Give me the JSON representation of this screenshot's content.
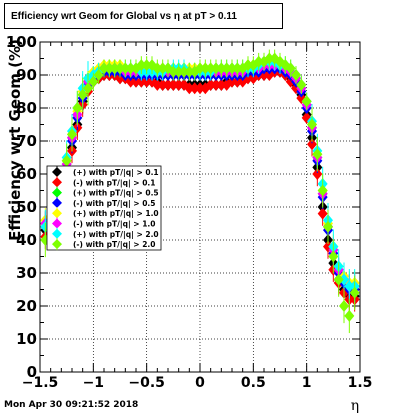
{
  "title": "Efficiency wrt Geom for Global vs   η at pT > 0.11",
  "timestamp": "Mon Apr 30 09:21:52 2018",
  "chart_data": {
    "type": "scatter",
    "title": "Efficiency wrt Geom for Global vs   η at pT > 0.11",
    "xlabel": "η",
    "ylabel": "Efficiency wrt Geom (%)",
    "xlim": [
      -1.5,
      1.5
    ],
    "ylim": [
      0,
      100
    ],
    "xticks": [
      -1.5,
      -1,
      -0.5,
      0,
      0.5,
      1,
      1.5
    ],
    "xtick_labels": [
      "−1.5",
      "−1",
      "−0.5",
      "0",
      "0.5",
      "1",
      "1.5"
    ],
    "yticks": [
      0,
      10,
      20,
      30,
      40,
      50,
      60,
      70,
      80,
      90,
      100
    ],
    "grid": true,
    "legend_position": "left",
    "x": [
      -1.45,
      -1.4,
      -1.35,
      -1.3,
      -1.25,
      -1.2,
      -1.15,
      -1.1,
      -1.05,
      -1.0,
      -0.95,
      -0.9,
      -0.85,
      -0.8,
      -0.75,
      -0.7,
      -0.65,
      -0.6,
      -0.55,
      -0.5,
      -0.45,
      -0.4,
      -0.35,
      -0.3,
      -0.25,
      -0.2,
      -0.15,
      -0.1,
      -0.05,
      0.0,
      0.05,
      0.1,
      0.15,
      0.2,
      0.25,
      0.3,
      0.35,
      0.4,
      0.45,
      0.5,
      0.55,
      0.6,
      0.65,
      0.7,
      0.75,
      0.8,
      0.85,
      0.9,
      0.95,
      1.0,
      1.05,
      1.1,
      1.15,
      1.2,
      1.25,
      1.3,
      1.35,
      1.4,
      1.45
    ],
    "series": [
      {
        "name": "(+) with pT/|q| > 0.1",
        "color": "#000000",
        "values": [
          43,
          44,
          46,
          52,
          60,
          68,
          75,
          82,
          86,
          88,
          89,
          90,
          90,
          90,
          89,
          89,
          89,
          88,
          88,
          88,
          88,
          88,
          87,
          87,
          87,
          87,
          87,
          87,
          87,
          87,
          87,
          87,
          87,
          87,
          88,
          88,
          88,
          89,
          89,
          90,
          90,
          90,
          91,
          91,
          91,
          90,
          89,
          87,
          84,
          78,
          71,
          62,
          50,
          40,
          33,
          28,
          25,
          23,
          23
        ]
      },
      {
        "name": "(-) with pT/|q| > 0.1",
        "color": "#ff0000",
        "values": [
          41,
          42,
          45,
          50,
          58,
          67,
          74,
          81,
          85,
          88,
          89,
          90,
          90,
          90,
          89,
          89,
          88,
          88,
          88,
          88,
          88,
          87,
          87,
          87,
          87,
          87,
          87,
          86,
          86,
          86,
          86,
          87,
          87,
          87,
          87,
          88,
          88,
          88,
          89,
          89,
          90,
          90,
          90,
          91,
          91,
          90,
          88,
          86,
          83,
          77,
          69,
          60,
          48,
          38,
          31,
          27,
          24,
          22,
          22
        ]
      },
      {
        "name": "(+) with pT/|q| > 0.5",
        "color": "#00ff00",
        "values": [
          45,
          46,
          48,
          55,
          63,
          71,
          78,
          84,
          88,
          90,
          91,
          92,
          92,
          92,
          92,
          91,
          91,
          91,
          91,
          91,
          91,
          91,
          91,
          91,
          91,
          91,
          91,
          91,
          91,
          91,
          91,
          91,
          91,
          91,
          91,
          91,
          91,
          91,
          92,
          92,
          92,
          93,
          93,
          93,
          93,
          92,
          91,
          89,
          86,
          81,
          74,
          65,
          54,
          44,
          37,
          31,
          28,
          26,
          26
        ]
      },
      {
        "name": "(-) with pT/|q| > 0.5",
        "color": "#0000ff",
        "values": [
          44,
          45,
          47,
          54,
          62,
          70,
          77,
          83,
          87,
          89,
          90,
          91,
          91,
          91,
          91,
          90,
          90,
          90,
          90,
          90,
          90,
          90,
          90,
          90,
          90,
          90,
          90,
          90,
          90,
          90,
          90,
          90,
          90,
          90,
          90,
          90,
          90,
          90,
          91,
          91,
          91,
          92,
          92,
          92,
          92,
          91,
          90,
          88,
          85,
          80,
          73,
          64,
          53,
          43,
          36,
          30,
          27,
          25,
          25
        ]
      },
      {
        "name": "(+) with pT/|q| > 1.0",
        "color": "#ffff00",
        "values": [
          46,
          47,
          49,
          56,
          64,
          72,
          79,
          85,
          89,
          91,
          92,
          93,
          93,
          93,
          93,
          92,
          92,
          92,
          92,
          92,
          92,
          92,
          92,
          92,
          92,
          92,
          92,
          92,
          92,
          92,
          92,
          92,
          92,
          92,
          92,
          92,
          92,
          92,
          93,
          93,
          93,
          94,
          94,
          94,
          94,
          93,
          92,
          90,
          87,
          82,
          75,
          66,
          55,
          45,
          38,
          32,
          29,
          27,
          27
        ]
      },
      {
        "name": "(-) with pT/|q| > 1.0",
        "color": "#ff00ff",
        "values": [
          45,
          46,
          48,
          55,
          63,
          71,
          78,
          84,
          88,
          90,
          91,
          92,
          92,
          92,
          92,
          91,
          91,
          91,
          91,
          91,
          91,
          91,
          91,
          91,
          91,
          91,
          91,
          91,
          91,
          91,
          91,
          91,
          91,
          91,
          91,
          91,
          91,
          91,
          92,
          92,
          92,
          93,
          93,
          93,
          93,
          92,
          91,
          89,
          86,
          81,
          74,
          65,
          54,
          44,
          37,
          31,
          28,
          26,
          26
        ]
      },
      {
        "name": "(+) with pT/|q| > 2.0",
        "color": "#00ffff",
        "values": [
          44,
          46,
          49,
          56,
          65,
          73,
          80,
          86,
          89,
          90,
          91,
          92,
          92,
          92,
          92,
          92,
          92,
          92,
          91,
          91,
          91,
          91,
          91,
          92,
          92,
          92,
          92,
          91,
          91,
          91,
          91,
          91,
          92,
          92,
          92,
          92,
          92,
          92,
          92,
          92,
          93,
          94,
          94,
          94,
          93,
          93,
          92,
          90,
          87,
          82,
          76,
          67,
          57,
          46,
          38,
          32,
          28,
          26,
          26
        ]
      },
      {
        "name": "(-) with pT/|q| > 2.0",
        "color": "#7fff00",
        "values": [
          40,
          43,
          47,
          55,
          64,
          72,
          80,
          84,
          86,
          88,
          90,
          92,
          92,
          92,
          92,
          92,
          92,
          92,
          93,
          93,
          93,
          92,
          92,
          92,
          91,
          91,
          91,
          91,
          91,
          92,
          92,
          92,
          92,
          92,
          92,
          92,
          92,
          92,
          93,
          93,
          94,
          94,
          95,
          95,
          94,
          93,
          92,
          90,
          87,
          82,
          75,
          66,
          55,
          44,
          35,
          28,
          20,
          17,
          24
        ]
      }
    ]
  }
}
